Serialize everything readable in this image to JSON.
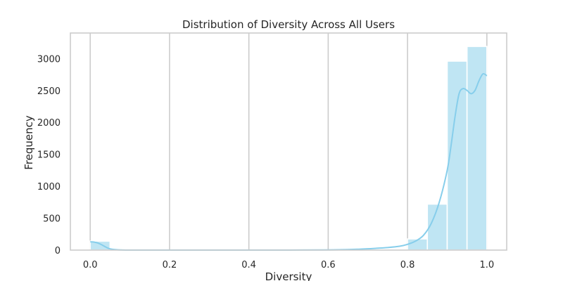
{
  "chart_data": {
    "type": "bar",
    "title": "Distribution of Diversity Across All Users",
    "xlabel": "Diversity",
    "ylabel": "Frequency",
    "xlim": [
      -0.05,
      1.05
    ],
    "ylim": [
      0,
      3400
    ],
    "xticks": [
      0.0,
      0.2,
      0.4,
      0.6,
      0.8,
      1.0
    ],
    "xtick_labels": [
      "0.0",
      "0.2",
      "0.4",
      "0.6",
      "0.8",
      "1.0"
    ],
    "yticks": [
      0,
      500,
      1000,
      1500,
      2000,
      2500,
      3000
    ],
    "ytick_labels": [
      "0",
      "500",
      "1000",
      "1500",
      "2000",
      "2500",
      "3000"
    ],
    "grid": "vertical",
    "bin_width": 0.05,
    "bins": [
      {
        "start": 0.0,
        "end": 0.05,
        "count": 140
      },
      {
        "start": 0.05,
        "end": 0.1,
        "count": 0
      },
      {
        "start": 0.1,
        "end": 0.15,
        "count": 0
      },
      {
        "start": 0.15,
        "end": 0.2,
        "count": 0
      },
      {
        "start": 0.2,
        "end": 0.25,
        "count": 0
      },
      {
        "start": 0.25,
        "end": 0.3,
        "count": 0
      },
      {
        "start": 0.3,
        "end": 0.35,
        "count": 0
      },
      {
        "start": 0.35,
        "end": 0.4,
        "count": 0
      },
      {
        "start": 0.4,
        "end": 0.45,
        "count": 0
      },
      {
        "start": 0.45,
        "end": 0.5,
        "count": 0
      },
      {
        "start": 0.5,
        "end": 0.55,
        "count": 0
      },
      {
        "start": 0.55,
        "end": 0.6,
        "count": 0
      },
      {
        "start": 0.6,
        "end": 0.65,
        "count": 0
      },
      {
        "start": 0.65,
        "end": 0.7,
        "count": 0
      },
      {
        "start": 0.7,
        "end": 0.75,
        "count": 0
      },
      {
        "start": 0.75,
        "end": 0.8,
        "count": 5
      },
      {
        "start": 0.8,
        "end": 0.85,
        "count": 175
      },
      {
        "start": 0.85,
        "end": 0.9,
        "count": 720
      },
      {
        "start": 0.9,
        "end": 0.95,
        "count": 2960
      },
      {
        "start": 0.95,
        "end": 1.0,
        "count": 3190
      }
    ],
    "kde": {
      "x": [
        0.0,
        0.01,
        0.02,
        0.03,
        0.04,
        0.05,
        0.07,
        0.1,
        0.2,
        0.3,
        0.4,
        0.5,
        0.6,
        0.65,
        0.7,
        0.72,
        0.75,
        0.78,
        0.8,
        0.82,
        0.84,
        0.86,
        0.88,
        0.9,
        0.91,
        0.92,
        0.93,
        0.94,
        0.95,
        0.96,
        0.97,
        0.98,
        0.99,
        1.0
      ],
      "y": [
        130,
        125,
        110,
        80,
        45,
        20,
        4,
        0,
        0,
        0,
        0,
        0,
        3,
        8,
        20,
        28,
        40,
        60,
        90,
        140,
        230,
        420,
        750,
        1250,
        1650,
        2100,
        2450,
        2530,
        2500,
        2450,
        2500,
        2650,
        2760,
        2730
      ]
    },
    "colors": {
      "bar_fill": "#bfe5f3",
      "kde_line": "#87ceeb",
      "grid": "#cccccc"
    }
  }
}
